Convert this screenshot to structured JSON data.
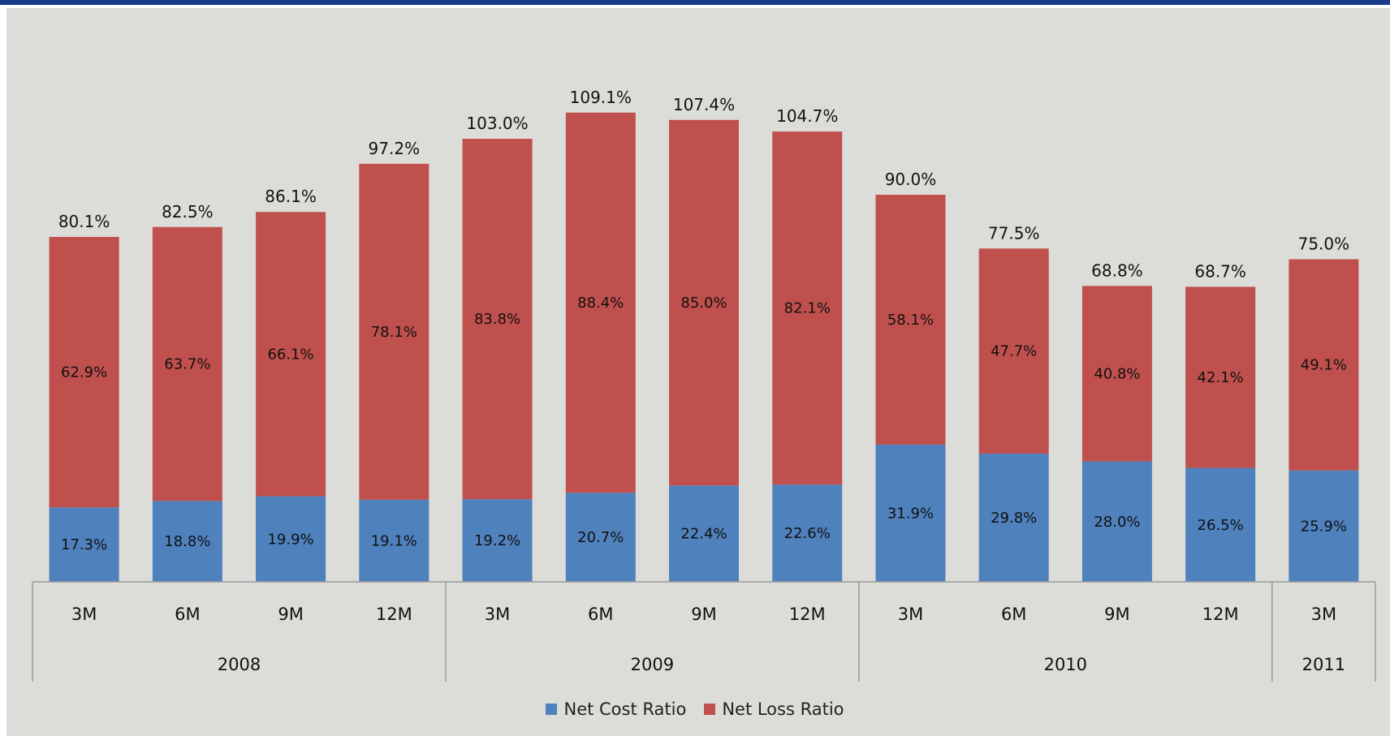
{
  "chart_data": {
    "type": "bar",
    "stacked": true,
    "categories": [
      "3M",
      "6M",
      "9M",
      "12M",
      "3M",
      "6M",
      "9M",
      "12M",
      "3M",
      "6M",
      "9M",
      "12M",
      "3M"
    ],
    "groups": [
      {
        "label": "2008",
        "count": 4
      },
      {
        "label": "2009",
        "count": 4
      },
      {
        "label": "2010",
        "count": 4
      },
      {
        "label": "2011",
        "count": 1
      }
    ],
    "series": [
      {
        "name": "Net Cost Ratio",
        "color": "#4f81bd",
        "values": [
          17.3,
          18.8,
          19.9,
          19.1,
          19.2,
          20.7,
          22.4,
          22.6,
          31.9,
          29.8,
          28.0,
          26.5,
          25.9
        ],
        "labels": [
          "17.3%",
          "18.8%",
          "19.9%",
          "19.1%",
          "19.2%",
          "20.7%",
          "22.4%",
          "22.6%",
          "31.9%",
          "29.8%",
          "28.0%",
          "26.5%",
          "25.9%"
        ]
      },
      {
        "name": "Net Loss Ratio",
        "color": "#c0504d",
        "values": [
          62.9,
          63.7,
          66.1,
          78.1,
          83.8,
          88.4,
          85.0,
          82.1,
          58.1,
          47.7,
          40.8,
          42.1,
          49.1
        ],
        "labels": [
          "62.9%",
          "63.7%",
          "66.1%",
          "78.1%",
          "83.8%",
          "88.4%",
          "85.0%",
          "82.1%",
          "58.1%",
          "47.7%",
          "40.8%",
          "42.1%",
          "49.1%"
        ]
      }
    ],
    "totals": [
      80.1,
      82.5,
      86.1,
      97.2,
      103.0,
      109.1,
      107.4,
      104.7,
      90.0,
      77.5,
      68.8,
      68.7,
      75.0
    ],
    "total_labels": [
      "80.1%",
      "82.5%",
      "86.1%",
      "97.2%",
      "103.0%",
      "109.1%",
      "107.4%",
      "104.7%",
      "90.0%",
      "77.5%",
      "68.8%",
      "68.7%",
      "75.0%"
    ],
    "legend_position": "bottom",
    "grid": false
  }
}
